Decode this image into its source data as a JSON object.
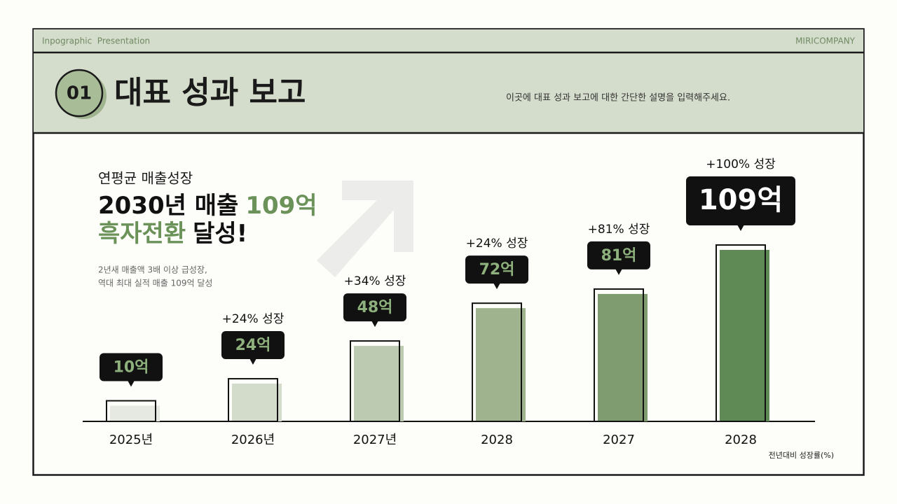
{
  "header": {
    "left": "Inpographic  Presentation",
    "right": "MIRICOMPANY"
  },
  "title": {
    "number": "01",
    "text": "대표 성과 보고",
    "description": "이곳에 대표 성과 보고에 대한 간단한 설명을 입력해주세요."
  },
  "summary": {
    "kicker": "연평균 매출성장",
    "headline_1": [
      "2030년 매출",
      "109억"
    ],
    "headline_2": [
      "흑자전환",
      "달성!"
    ],
    "body": [
      "2년새 매출액 3배 이상 급성장,",
      "역대 최대 실적 매출 109억 달성"
    ]
  },
  "chart_data": {
    "type": "bar",
    "categories": [
      "2025년",
      "2026년",
      "2027년",
      "2028",
      "2027",
      "2028"
    ],
    "values": [
      10,
      24,
      48,
      72,
      81,
      109
    ],
    "value_labels": [
      "10억",
      "24억",
      "48억",
      "72억",
      "81억",
      "109억"
    ],
    "growth_labels": [
      null,
      "+24% 성장",
      "+34% 성장",
      "+24% 성장",
      "+81% 성장",
      "+100% 성장"
    ],
    "colors": [
      "#e6e8e2",
      "#d3dccb",
      "#bccab1",
      "#9fb38f",
      "#7e9c6f",
      "#5f8a55"
    ],
    "note": "전년대비 성장률(%)"
  }
}
